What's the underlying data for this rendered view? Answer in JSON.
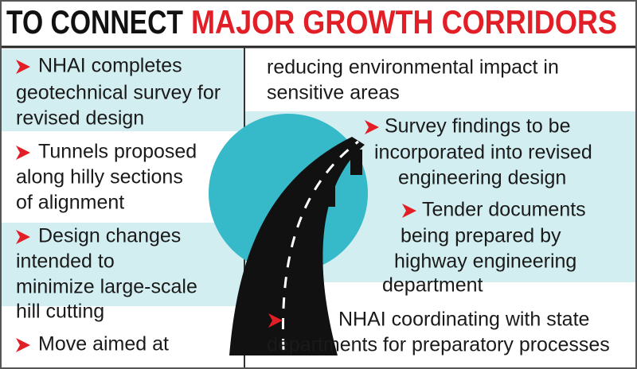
{
  "header": {
    "title_black": "TO CONNECT",
    "title_red": "MAJOR GROWTH CORRIDORS"
  },
  "left_items": [
    {
      "lines": [
        "NHAI completes",
        "geotechnical survey for",
        "revised design"
      ]
    },
    {
      "lines": [
        "Tunnels proposed",
        "along hilly sections",
        "of alignment"
      ]
    },
    {
      "lines": [
        "Design changes",
        "intended to",
        "minimize large-scale",
        "hill cutting"
      ]
    },
    {
      "lines": [
        "Move aimed at"
      ]
    }
  ],
  "right_items": [
    {
      "lines": [
        "reducing environmental impact in",
        "sensitive areas"
      ]
    },
    {
      "lines": [
        "Survey findings to be",
        "incorporated into revised",
        "engineering design"
      ]
    },
    {
      "lines": [
        "Tender documents",
        "being prepared by",
        "highway engineering",
        "department"
      ]
    },
    {
      "lines": [
        "NHAI coordinating with state",
        "departments for preparatory processes"
      ]
    }
  ]
}
